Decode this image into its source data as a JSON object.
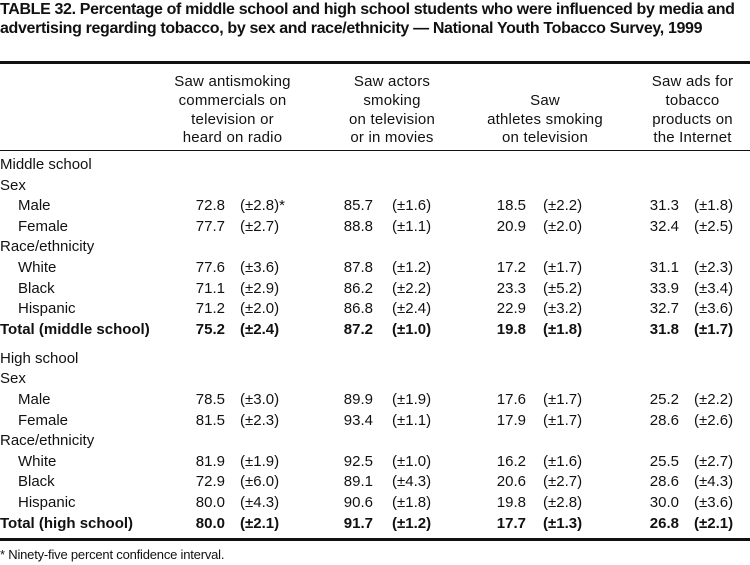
{
  "title": "TABLE 32. Percentage of middle school and high school students who were influenced by media and advertising regarding tobacco, by sex and race/ethnicity — National Youth Tobacco Survey, 1999",
  "columns": [
    "Saw antismoking\ncommercials on\ntelevision or\nheard on radio",
    "Saw actors\nsmoking\non television\nor in movies",
    "Saw\nathletes smoking\non television",
    "Saw ads for\ntobacco\nproducts on\nthe Internet"
  ],
  "sections": [
    {
      "rows": [
        {
          "label": "Middle school",
          "type": "section"
        },
        {
          "label": "Sex",
          "type": "group"
        },
        {
          "label": "Male",
          "type": "item",
          "cells": [
            [
              "72.8",
              "(±2.8)*"
            ],
            [
              "85.7",
              "(±1.6)"
            ],
            [
              "18.5",
              "(±2.2)"
            ],
            [
              "31.3",
              "(±1.8)"
            ]
          ]
        },
        {
          "label": "Female",
          "type": "item",
          "cells": [
            [
              "77.7",
              "(±2.7)"
            ],
            [
              "88.8",
              "(±1.1)"
            ],
            [
              "20.9",
              "(±2.0)"
            ],
            [
              "32.4",
              "(±2.5)"
            ]
          ]
        },
        {
          "label": "Race/ethnicity",
          "type": "group"
        },
        {
          "label": "White",
          "type": "item",
          "cells": [
            [
              "77.6",
              "(±3.6)"
            ],
            [
              "87.8",
              "(±1.2)"
            ],
            [
              "17.2",
              "(±1.7)"
            ],
            [
              "31.1",
              "(±2.3)"
            ]
          ]
        },
        {
          "label": "Black",
          "type": "item",
          "cells": [
            [
              "71.1",
              "(±2.9)"
            ],
            [
              "86.2",
              "(±2.2)"
            ],
            [
              "23.3",
              "(±5.2)"
            ],
            [
              "33.9",
              "(±3.4)"
            ]
          ]
        },
        {
          "label": "Hispanic",
          "type": "item",
          "cells": [
            [
              "71.2",
              "(±2.0)"
            ],
            [
              "86.8",
              "(±2.4)"
            ],
            [
              "22.9",
              "(±3.2)"
            ],
            [
              "32.7",
              "(±3.6)"
            ]
          ]
        },
        {
          "label": "Total (middle school)",
          "type": "total",
          "cells": [
            [
              "75.2",
              "(±2.4)"
            ],
            [
              "87.2",
              "(±1.0)"
            ],
            [
              "19.8",
              "(±1.8)"
            ],
            [
              "31.8",
              "(±1.7)"
            ]
          ]
        }
      ]
    },
    {
      "rows": [
        {
          "label": "High school",
          "type": "section"
        },
        {
          "label": "Sex",
          "type": "group"
        },
        {
          "label": "Male",
          "type": "item",
          "cells": [
            [
              "78.5",
              "(±3.0)"
            ],
            [
              "89.9",
              "(±1.9)"
            ],
            [
              "17.6",
              "(±1.7)"
            ],
            [
              "25.2",
              "(±2.2)"
            ]
          ]
        },
        {
          "label": "Female",
          "type": "item",
          "cells": [
            [
              "81.5",
              "(±2.3)"
            ],
            [
              "93.4",
              "(±1.1)"
            ],
            [
              "17.9",
              "(±1.7)"
            ],
            [
              "28.6",
              "(±2.6)"
            ]
          ]
        },
        {
          "label": "Race/ethnicity",
          "type": "group"
        },
        {
          "label": "White",
          "type": "item",
          "cells": [
            [
              "81.9",
              "(±1.9)"
            ],
            [
              "92.5",
              "(±1.0)"
            ],
            [
              "16.2",
              "(±1.6)"
            ],
            [
              "25.5",
              "(±2.7)"
            ]
          ]
        },
        {
          "label": "Black",
          "type": "item",
          "cells": [
            [
              "72.9",
              "(±6.0)"
            ],
            [
              "89.1",
              "(±4.3)"
            ],
            [
              "20.6",
              "(±2.7)"
            ],
            [
              "28.6",
              "(±4.3)"
            ]
          ]
        },
        {
          "label": "Hispanic",
          "type": "item",
          "cells": [
            [
              "80.0",
              "(±4.3)"
            ],
            [
              "90.6",
              "(±1.8)"
            ],
            [
              "19.8",
              "(±2.8)"
            ],
            [
              "30.0",
              "(±3.6)"
            ]
          ]
        },
        {
          "label": "Total (high school)",
          "type": "total",
          "cells": [
            [
              "80.0",
              "(±2.1)"
            ],
            [
              "91.7",
              "(±1.2)"
            ],
            [
              "17.7",
              "(±1.3)"
            ],
            [
              "26.8",
              "(±2.1)"
            ]
          ]
        }
      ]
    }
  ],
  "footnote": "* Ninety-five percent confidence interval."
}
